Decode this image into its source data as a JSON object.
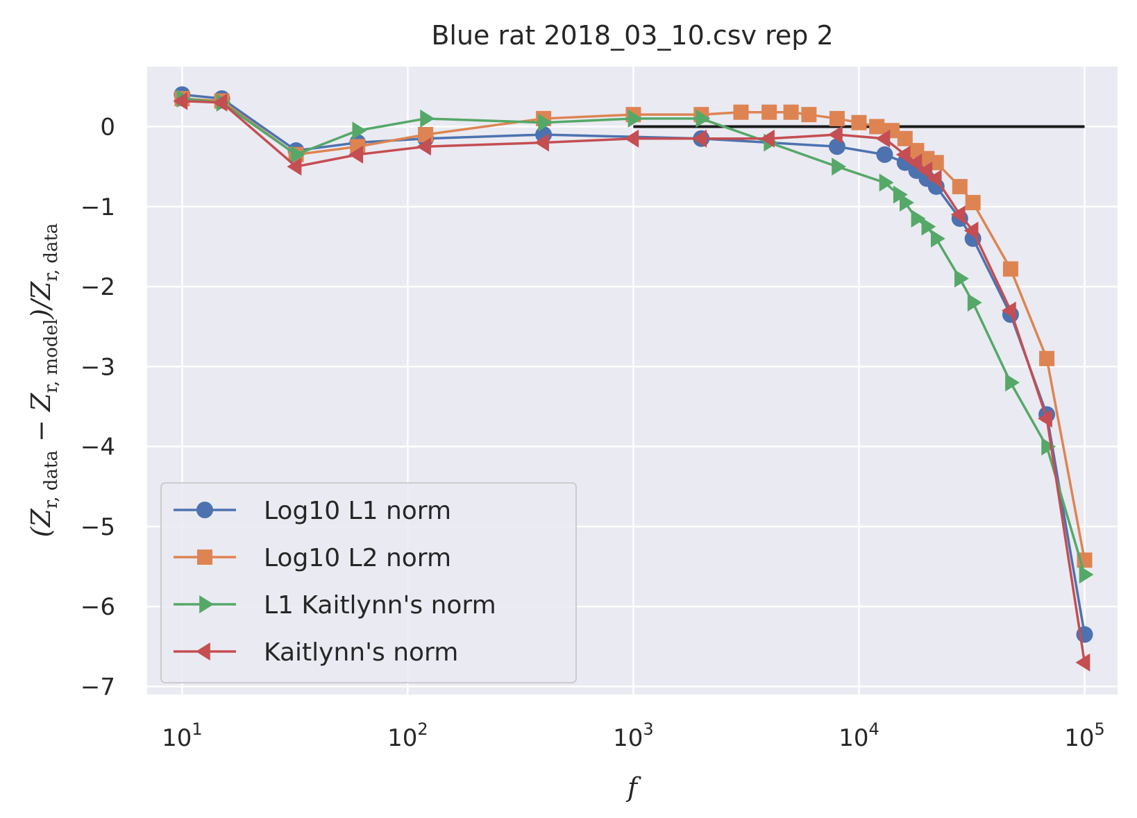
{
  "chart_data": {
    "type": "line",
    "title": "Blue rat 2018_03_10.csv rep 2",
    "xlabel": "f",
    "ylabel_parts": {
      "open": "(Z",
      "sub_data": "r, data",
      "minus": " − Z",
      "sub_model": "r, model",
      "close_div": ")/Z",
      "sub_denom": "r, data"
    },
    "xscale": "log",
    "xlim": [
      7,
      140000
    ],
    "ylim": [
      -7.1,
      0.75
    ],
    "x_ticks": [
      10,
      100,
      1000,
      10000,
      100000
    ],
    "x_tick_labels": [
      {
        "base": "10",
        "exp": "1"
      },
      {
        "base": "10",
        "exp": "2"
      },
      {
        "base": "10",
        "exp": "3"
      },
      {
        "base": "10",
        "exp": "4"
      },
      {
        "base": "10",
        "exp": "5"
      }
    ],
    "y_ticks": [
      0,
      -1,
      -2,
      -3,
      -4,
      -5,
      -6,
      -7
    ],
    "y_tick_labels": [
      "0",
      "−1",
      "−2",
      "−3",
      "−4",
      "−5",
      "−6",
      "−7"
    ],
    "grid": true,
    "legend_position": "lower-left",
    "reference_line": {
      "x": [
        1000,
        100000
      ],
      "y": [
        0,
        0
      ],
      "color": "#1a1a1a"
    },
    "colors": {
      "background": "#eaeaf2",
      "grid": "#ffffff",
      "text": "#262626"
    },
    "series": [
      {
        "name": "Log10 L1 norm",
        "color": "#4c72b0",
        "marker": "circle",
        "x": [
          10,
          15,
          32,
          60,
          120,
          400,
          2000,
          8000,
          13000,
          16000,
          18000,
          20000,
          22000,
          28000,
          32000,
          47000,
          68000,
          100000
        ],
        "y": [
          0.4,
          0.35,
          -0.3,
          -0.2,
          -0.15,
          -0.1,
          -0.15,
          -0.25,
          -0.35,
          -0.45,
          -0.55,
          -0.65,
          -0.75,
          -1.15,
          -1.4,
          -2.35,
          -3.6,
          -6.35
        ]
      },
      {
        "name": "Log10 L2 norm",
        "color": "#dd8452",
        "marker": "square",
        "x": [
          10,
          15,
          32,
          60,
          120,
          400,
          1000,
          2000,
          3000,
          4000,
          5000,
          6000,
          8000,
          10000,
          12000,
          14000,
          16000,
          18000,
          20000,
          22000,
          28000,
          32000,
          47000,
          68000,
          100000
        ],
        "y": [
          0.35,
          0.32,
          -0.35,
          -0.25,
          -0.1,
          0.1,
          0.15,
          0.15,
          0.18,
          0.18,
          0.18,
          0.15,
          0.1,
          0.05,
          0.0,
          -0.05,
          -0.15,
          -0.3,
          -0.4,
          -0.45,
          -0.75,
          -0.95,
          -1.78,
          -2.9,
          -5.42
        ]
      },
      {
        "name": "L1 Kaitlynn's norm",
        "color": "#55a868",
        "marker": "triangle-right",
        "x": [
          10,
          15,
          32,
          60,
          120,
          400,
          1000,
          2000,
          4000,
          8000,
          13000,
          15000,
          16000,
          18000,
          20000,
          22000,
          28000,
          32000,
          47000,
          68000,
          100000
        ],
        "y": [
          0.35,
          0.3,
          -0.35,
          -0.05,
          0.1,
          0.05,
          0.1,
          0.1,
          -0.2,
          -0.5,
          -0.7,
          -0.85,
          -0.95,
          -1.15,
          -1.25,
          -1.4,
          -1.9,
          -2.2,
          -3.2,
          -4.0,
          -5.6
        ]
      },
      {
        "name": "Kaitlynn's norm",
        "color": "#c44e52",
        "marker": "triangle-left",
        "x": [
          10,
          15,
          32,
          60,
          120,
          400,
          1000,
          2000,
          4000,
          8000,
          13000,
          16000,
          18000,
          20000,
          22000,
          28000,
          32000,
          47000,
          68000,
          100000
        ],
        "y": [
          0.32,
          0.3,
          -0.5,
          -0.35,
          -0.25,
          -0.2,
          -0.15,
          -0.15,
          -0.15,
          -0.1,
          -0.15,
          -0.35,
          -0.45,
          -0.55,
          -0.65,
          -1.1,
          -1.3,
          -2.3,
          -3.65,
          -6.7
        ]
      }
    ]
  }
}
